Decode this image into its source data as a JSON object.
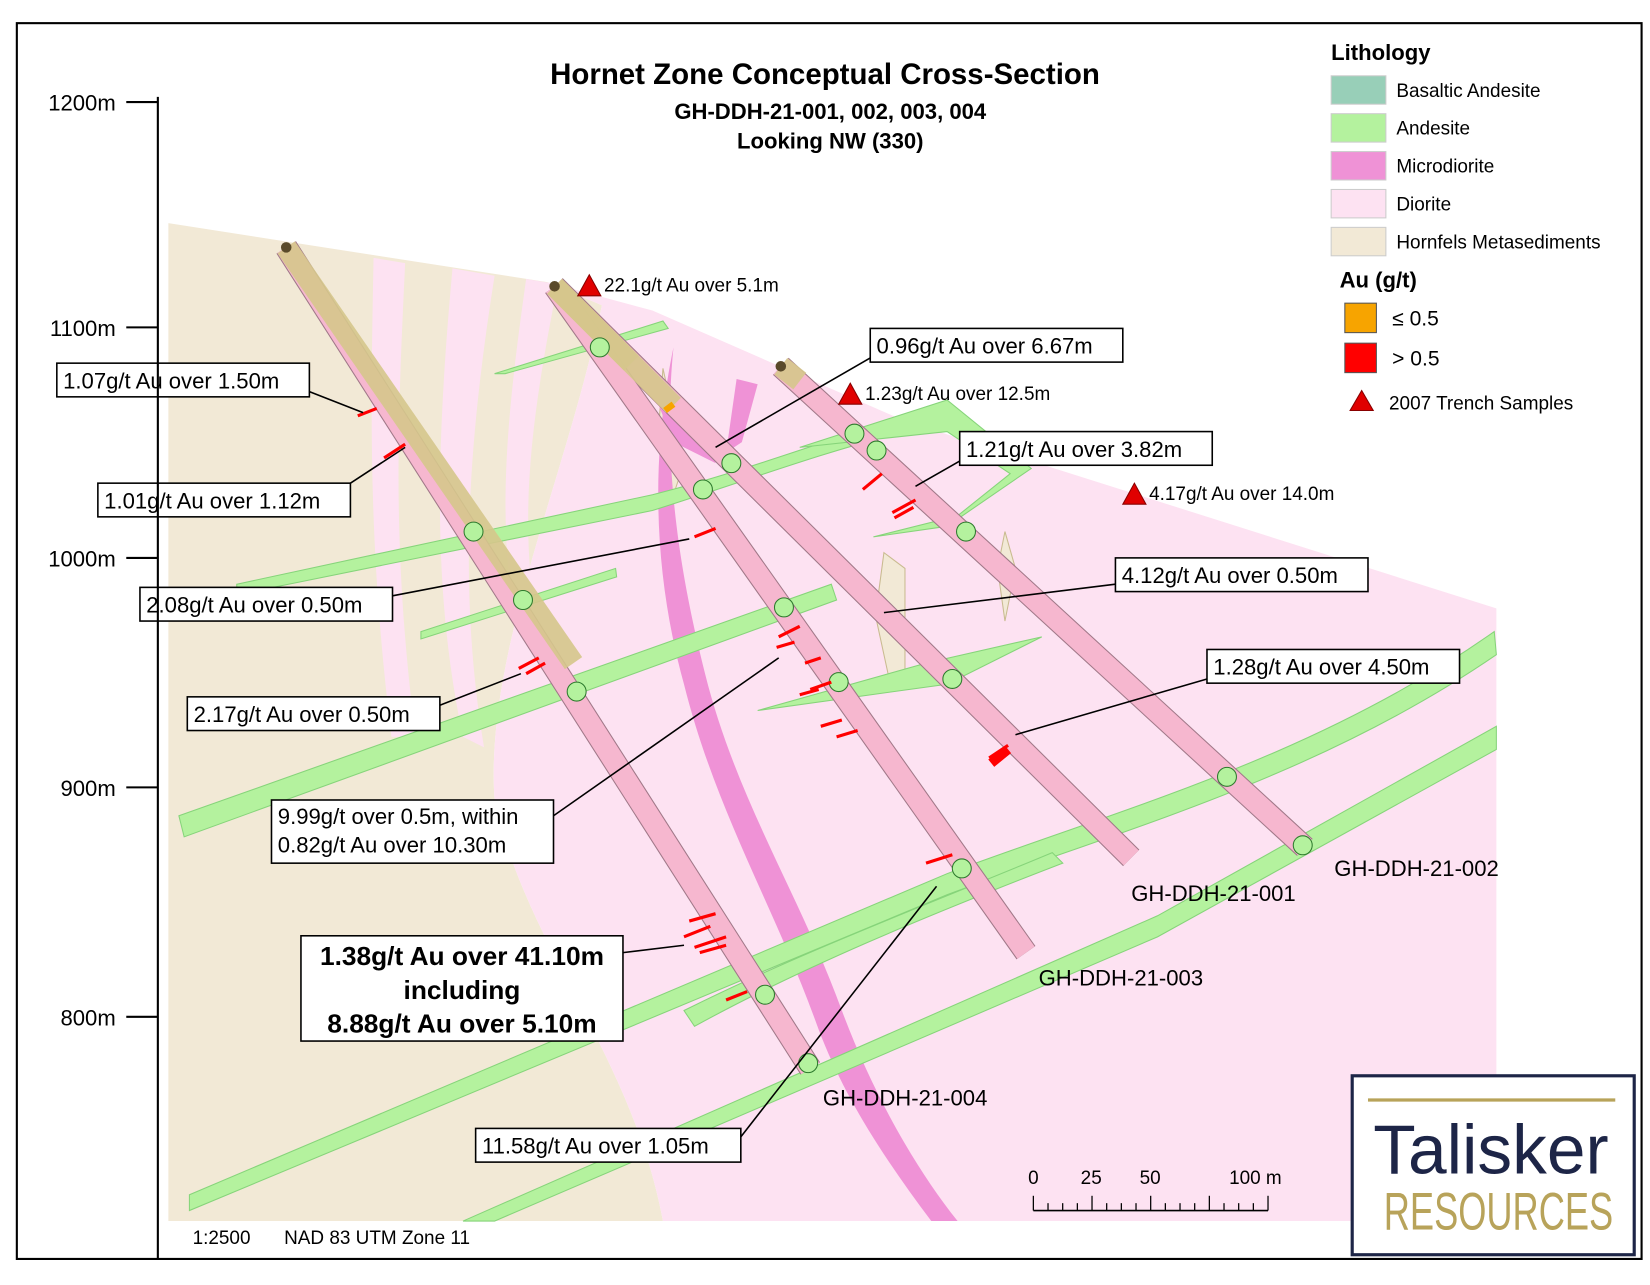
{
  "title": "Hornet Zone Conceptual Cross-Section",
  "subtitle": [
    "GH-DDH-21-001, 002, 003, 004",
    "Looking NW (330)"
  ],
  "elevation_labels": [
    "1200m",
    "1100m",
    "1000m",
    "900m",
    "800m"
  ],
  "legend": {
    "lithology_title": "Lithology",
    "lithology": [
      {
        "label": "Basaltic Andesite",
        "color": "#98cfb8"
      },
      {
        "label": "Andesite",
        "color": "#b4f29e"
      },
      {
        "label": "Microdiorite",
        "color": "#ef92d6"
      },
      {
        "label": "Diorite",
        "color": "#fde2f2"
      },
      {
        "label": "Hornfels Metasediments",
        "color": "#f2e9d6"
      }
    ],
    "au_title": "Au (g/t)",
    "au": [
      {
        "label": "≤ 0.5",
        "color": "#f7a400"
      },
      {
        "label": "> 0.5",
        "color": "#ff0000"
      }
    ],
    "trench": "2007 Trench Samples"
  },
  "trench_samples": [
    "22.1g/t Au over 5.1m",
    "1.23g/t Au over 12.5m",
    "4.17g/t Au over 14.0m"
  ],
  "callouts": [
    "1.07g/t Au over 1.50m",
    "1.01g/t Au over 1.12m",
    "0.96g/t Au over 6.67m",
    "1.21g/t Au over 3.82m",
    "2.08g/t Au over 0.50m",
    "4.12g/t Au over 0.50m",
    "1.28g/t Au over 4.50m",
    "2.17g/t Au over 0.50m",
    [
      "9.99g/t over 0.5m, within",
      "0.82g/t Au over 10.30m"
    ],
    [
      "1.38g/t Au over 41.10m",
      "including",
      "8.88g/t Au over 5.10m"
    ],
    "11.58g/t Au over 1.05m"
  ],
  "drill_holes": [
    "GH-DDH-21-001",
    "GH-DDH-21-002",
    "GH-DDH-21-003",
    "GH-DDH-21-004"
  ],
  "scale_bar": [
    "0",
    "25",
    "50",
    "100 m"
  ],
  "footer": [
    "1:2500",
    "NAD 83 UTM Zone 11"
  ],
  "logo": {
    "line1": "Talisker",
    "line2": "RESOURCES"
  }
}
